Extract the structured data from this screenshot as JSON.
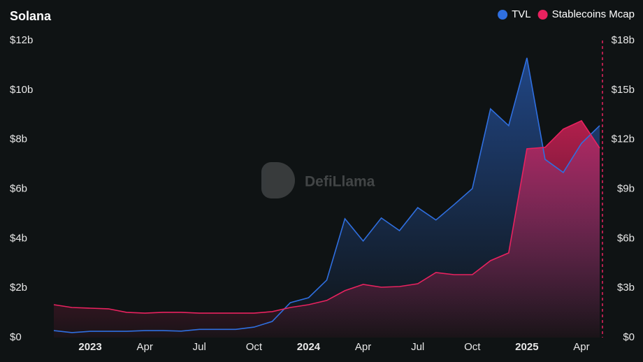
{
  "chart_data": {
    "type": "line",
    "title": "Solana",
    "watermark": "DefiLlama",
    "categories": [
      null,
      null,
      "2023",
      null,
      null,
      "Apr",
      null,
      null,
      "Jul",
      null,
      null,
      "Oct",
      null,
      null,
      "2024",
      null,
      null,
      "Apr",
      null,
      null,
      "Jul",
      null,
      null,
      "Oct",
      null,
      null,
      "2025",
      null,
      null,
      "Apr",
      null
    ],
    "series": [
      {
        "name": "TVL",
        "color": "#2f6fe0",
        "axis": "y",
        "values": [
          0.28,
          0.2,
          0.25,
          0.25,
          0.25,
          0.28,
          0.28,
          0.26,
          0.33,
          0.33,
          0.33,
          0.42,
          0.65,
          1.41,
          1.61,
          2.32,
          4.8,
          3.9,
          4.83,
          4.32,
          5.25,
          4.75,
          5.37,
          6.02,
          9.24,
          8.56,
          11.3,
          7.2,
          6.67,
          7.85,
          8.56
        ]
      },
      {
        "name": "Stablecoins Mcap",
        "color": "#e8225f",
        "axis": "y2",
        "values": [
          1.99,
          1.82,
          1.78,
          1.74,
          1.53,
          1.48,
          1.53,
          1.53,
          1.48,
          1.48,
          1.48,
          1.48,
          1.57,
          1.82,
          1.99,
          2.25,
          2.84,
          3.22,
          3.05,
          3.09,
          3.26,
          3.94,
          3.81,
          3.81,
          4.66,
          5.13,
          11.44,
          11.53,
          12.63,
          13.14,
          11.48
        ]
      }
    ],
    "ylim": [
      0,
      12
    ],
    "yticks": [
      {
        "value": 0,
        "label": "$0"
      },
      {
        "value": 2,
        "label": "$2b"
      },
      {
        "value": 4,
        "label": "$4b"
      },
      {
        "value": 6,
        "label": "$6b"
      },
      {
        "value": 8,
        "label": "$8b"
      },
      {
        "value": 10,
        "label": "$10b"
      },
      {
        "value": 12,
        "label": "$12b"
      }
    ],
    "y2lim": [
      0,
      18
    ],
    "y2ticks": [
      {
        "value": 0,
        "label": "$0"
      },
      {
        "value": 3,
        "label": "$3b"
      },
      {
        "value": 6,
        "label": "$6b"
      },
      {
        "value": 9,
        "label": "$9b"
      },
      {
        "value": 12,
        "label": "$12b"
      },
      {
        "value": 15,
        "label": "$15b"
      },
      {
        "value": 18,
        "label": "$18b"
      }
    ],
    "legend": "top-right",
    "grid": false
  }
}
